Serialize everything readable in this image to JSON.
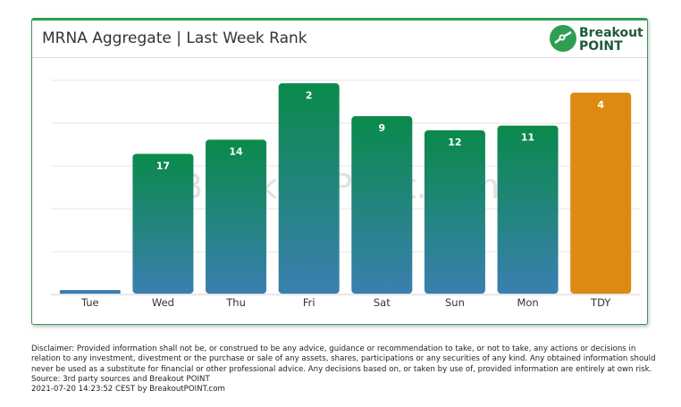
{
  "header": {
    "title": "MRNA Aggregate | Last Week Rank"
  },
  "logo": {
    "line1": "Breakout",
    "line2": "POINT",
    "icon": "breakout-point-logo-icon"
  },
  "watermark": "BreakoutPoint.com",
  "colors": {
    "brand_green": "#2e9e52",
    "bar_top": "#0a8a4a",
    "bar_bottom": "#3a7fb0",
    "today": "#dd8a12",
    "grid": "#e6e6e6"
  },
  "chart_data": {
    "type": "bar",
    "categories": [
      "Tue",
      "Wed",
      "Thu",
      "Fri",
      "Sat",
      "Sun",
      "Mon",
      "TDY"
    ],
    "values": [
      null,
      17,
      14,
      2,
      9,
      12,
      11,
      4
    ],
    "labels": [
      "",
      "17",
      "14",
      "2",
      "9",
      "12",
      "11",
      "4"
    ],
    "highlight": [
      "TDY"
    ],
    "y_reversed": true,
    "grid": true,
    "title": "MRNA Aggregate | Last Week Rank",
    "xlabel": "",
    "ylabel": ""
  },
  "disclaimer": {
    "lines": [
      "Disclaimer: Provided information shall not be, or construed to be any advice, guidance or recommendation to take, or not to take, any actions or decisions in",
      "relation to any investment, divestment or the purchase or sale of any assets, shares, participations or any securities of any kind. Any obtained information should",
      "never be used as a substitute for financial or other professional advice. Any decisions based on, or taken by use of, provided information are entirely at own risk.",
      "Source: 3rd party sources and Breakout POINT",
      "2021-07-20 14:23:52 CEST by BreakoutPOINT.com"
    ]
  }
}
